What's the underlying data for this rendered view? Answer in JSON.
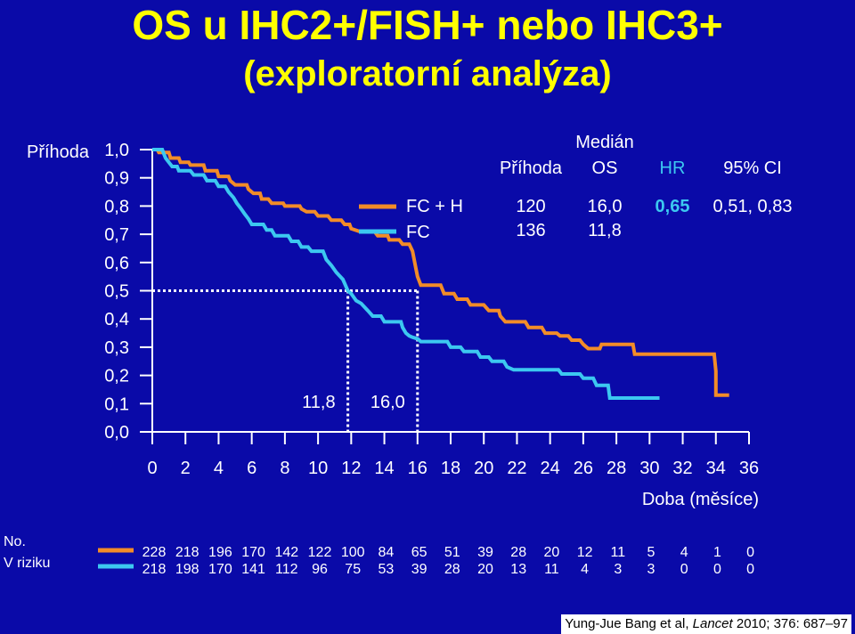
{
  "title": "OS u IHC2+/FISH+ nebo IHC3+",
  "subtitle": "(exploratorní analýza)",
  "citation": {
    "authors": "Yung-Jue Bang et al, ",
    "journal": "Lancet",
    "rest": " 2010; 376: 687–97"
  },
  "colors": {
    "fc_h": "#f28c28",
    "fc": "#3cc8f0",
    "text": "#ffffff",
    "hr": "#3cc8f0",
    "title": "#ffff00",
    "background": "#0a0aa8"
  },
  "legend_table": {
    "header_top": "Medián",
    "headers": [
      "Příhoda",
      "OS",
      "HR",
      "95% CI"
    ],
    "rows": [
      {
        "name": "FC + H",
        "events": "120",
        "median": "16,0",
        "hr": "0,65",
        "ci": "0,51, 0,83"
      },
      {
        "name": "FC",
        "events": "136",
        "median": "11,8",
        "hr": "",
        "ci": ""
      }
    ]
  },
  "risk_table": {
    "label_line1": "No.",
    "label_line2": "V riziku",
    "fc_h": [
      "228",
      "218",
      "196",
      "170",
      "142",
      "122",
      "100",
      "84",
      "65",
      "51",
      "39",
      "28",
      "20",
      "12",
      "11",
      "5",
      "4",
      "1",
      "0"
    ],
    "fc": [
      "218",
      "198",
      "170",
      "141",
      "112",
      "96",
      "75",
      "53",
      "39",
      "28",
      "20",
      "13",
      "11",
      "4",
      "3",
      "3",
      "0",
      "0",
      "0"
    ]
  },
  "chart_data": {
    "type": "line",
    "title": "OS u IHC2+/FISH+ nebo IHC3+",
    "subtitle": "(exploratorní analýza)",
    "ylabel": "Příhoda",
    "xlabel": "Doba (měsíce)",
    "xlim": [
      0,
      36
    ],
    "ylim": [
      0,
      1
    ],
    "x_ticks": [
      "0",
      "2",
      "4",
      "6",
      "8",
      "10",
      "12",
      "14",
      "16",
      "18",
      "20",
      "22",
      "24",
      "26",
      "28",
      "30",
      "32",
      "34",
      "36"
    ],
    "y_ticks": [
      "0,0",
      "0,1",
      "0,2",
      "0,3",
      "0,4",
      "0,5",
      "0,6",
      "0,7",
      "0,8",
      "0,9",
      "1,0"
    ],
    "median_annotations": [
      {
        "x": 11.8,
        "label": "11,8"
      },
      {
        "x": 16.0,
        "label": "16,0"
      }
    ],
    "series": [
      {
        "name": "FC + H",
        "points": [
          [
            0,
            1.0
          ],
          [
            0.3,
            1.0
          ],
          [
            0.4,
            0.99
          ],
          [
            1.0,
            0.99
          ],
          [
            1.1,
            0.97
          ],
          [
            1.6,
            0.97
          ],
          [
            1.7,
            0.955
          ],
          [
            2.2,
            0.955
          ],
          [
            2.3,
            0.945
          ],
          [
            3.1,
            0.945
          ],
          [
            3.2,
            0.925
          ],
          [
            3.9,
            0.925
          ],
          [
            4.0,
            0.905
          ],
          [
            4.6,
            0.905
          ],
          [
            4.7,
            0.89
          ],
          [
            5.0,
            0.875
          ],
          [
            5.7,
            0.875
          ],
          [
            5.8,
            0.86
          ],
          [
            6.1,
            0.845
          ],
          [
            6.5,
            0.845
          ],
          [
            6.6,
            0.825
          ],
          [
            7.0,
            0.825
          ],
          [
            7.2,
            0.81
          ],
          [
            7.9,
            0.81
          ],
          [
            8.0,
            0.8
          ],
          [
            8.9,
            0.8
          ],
          [
            9.0,
            0.79
          ],
          [
            9.3,
            0.78
          ],
          [
            9.8,
            0.78
          ],
          [
            10.0,
            0.765
          ],
          [
            10.6,
            0.765
          ],
          [
            10.8,
            0.75
          ],
          [
            11.4,
            0.75
          ],
          [
            11.6,
            0.735
          ],
          [
            11.9,
            0.735
          ],
          [
            12.0,
            0.72
          ],
          [
            12.5,
            0.71
          ],
          [
            13.4,
            0.71
          ],
          [
            13.6,
            0.695
          ],
          [
            14.2,
            0.695
          ],
          [
            14.3,
            0.68
          ],
          [
            14.9,
            0.68
          ],
          [
            15.1,
            0.665
          ],
          [
            15.5,
            0.665
          ],
          [
            15.7,
            0.64
          ],
          [
            15.9,
            0.58
          ],
          [
            16.0,
            0.55
          ],
          [
            16.2,
            0.52
          ],
          [
            17.4,
            0.52
          ],
          [
            17.6,
            0.49
          ],
          [
            18.2,
            0.49
          ],
          [
            18.4,
            0.47
          ],
          [
            19.0,
            0.47
          ],
          [
            19.2,
            0.45
          ],
          [
            20.0,
            0.45
          ],
          [
            20.3,
            0.43
          ],
          [
            20.9,
            0.43
          ],
          [
            21.0,
            0.41
          ],
          [
            21.3,
            0.39
          ],
          [
            22.5,
            0.39
          ],
          [
            22.7,
            0.37
          ],
          [
            23.5,
            0.37
          ],
          [
            23.7,
            0.35
          ],
          [
            24.4,
            0.35
          ],
          [
            24.6,
            0.34
          ],
          [
            25.1,
            0.34
          ],
          [
            25.3,
            0.325
          ],
          [
            25.8,
            0.325
          ],
          [
            26.0,
            0.31
          ],
          [
            26.3,
            0.295
          ],
          [
            27.0,
            0.295
          ],
          [
            27.1,
            0.31
          ],
          [
            29.0,
            0.31
          ],
          [
            29.1,
            0.275
          ],
          [
            33.9,
            0.275
          ],
          [
            34.0,
            0.215
          ],
          [
            34.0,
            0.13
          ],
          [
            34.8,
            0.13
          ]
        ]
      },
      {
        "name": "FC",
        "points": [
          [
            0,
            1.0
          ],
          [
            0.6,
            1.0
          ],
          [
            0.7,
            0.985
          ],
          [
            0.8,
            0.97
          ],
          [
            1.0,
            0.955
          ],
          [
            1.2,
            0.94
          ],
          [
            1.5,
            0.94
          ],
          [
            1.6,
            0.925
          ],
          [
            2.3,
            0.925
          ],
          [
            2.5,
            0.91
          ],
          [
            3.1,
            0.91
          ],
          [
            3.3,
            0.89
          ],
          [
            3.8,
            0.89
          ],
          [
            4.0,
            0.87
          ],
          [
            4.4,
            0.87
          ],
          [
            4.6,
            0.85
          ],
          [
            4.9,
            0.83
          ],
          [
            5.1,
            0.81
          ],
          [
            5.3,
            0.795
          ],
          [
            5.6,
            0.77
          ],
          [
            5.8,
            0.755
          ],
          [
            6.0,
            0.735
          ],
          [
            6.7,
            0.735
          ],
          [
            6.9,
            0.715
          ],
          [
            7.2,
            0.715
          ],
          [
            7.4,
            0.695
          ],
          [
            8.2,
            0.695
          ],
          [
            8.4,
            0.675
          ],
          [
            8.8,
            0.675
          ],
          [
            9.0,
            0.655
          ],
          [
            9.4,
            0.655
          ],
          [
            9.6,
            0.64
          ],
          [
            10.3,
            0.64
          ],
          [
            10.5,
            0.61
          ],
          [
            10.8,
            0.59
          ],
          [
            11.1,
            0.565
          ],
          [
            11.5,
            0.54
          ],
          [
            11.8,
            0.5
          ],
          [
            12.0,
            0.49
          ],
          [
            12.3,
            0.465
          ],
          [
            12.6,
            0.455
          ],
          [
            13.0,
            0.43
          ],
          [
            13.3,
            0.41
          ],
          [
            13.8,
            0.41
          ],
          [
            14.0,
            0.39
          ],
          [
            15.0,
            0.39
          ],
          [
            15.1,
            0.37
          ],
          [
            15.3,
            0.35
          ],
          [
            15.5,
            0.34
          ],
          [
            15.7,
            0.335
          ],
          [
            16.0,
            0.33
          ],
          [
            16.2,
            0.32
          ],
          [
            17.8,
            0.32
          ],
          [
            18.0,
            0.3
          ],
          [
            18.6,
            0.3
          ],
          [
            18.8,
            0.285
          ],
          [
            19.6,
            0.285
          ],
          [
            19.8,
            0.265
          ],
          [
            20.3,
            0.265
          ],
          [
            20.5,
            0.25
          ],
          [
            21.2,
            0.25
          ],
          [
            21.4,
            0.23
          ],
          [
            21.8,
            0.22
          ],
          [
            24.5,
            0.22
          ],
          [
            24.7,
            0.205
          ],
          [
            25.8,
            0.205
          ],
          [
            26.0,
            0.19
          ],
          [
            26.6,
            0.19
          ],
          [
            26.8,
            0.165
          ],
          [
            27.5,
            0.165
          ],
          [
            27.6,
            0.12
          ],
          [
            30.6,
            0.12
          ]
        ]
      }
    ]
  }
}
